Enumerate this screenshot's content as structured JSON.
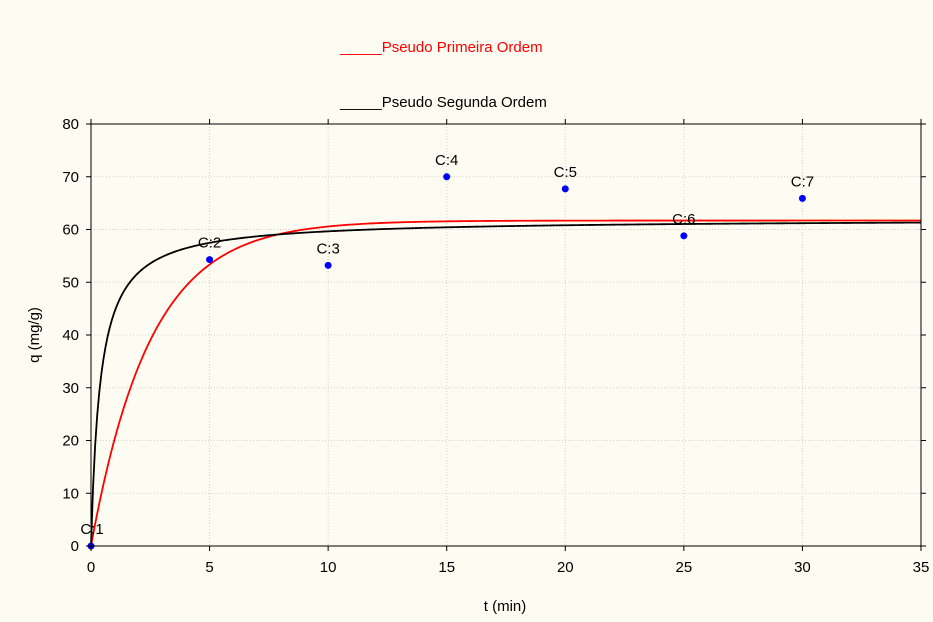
{
  "chart_data": {
    "type": "scatter",
    "title": "",
    "xlabel": "t (min)",
    "ylabel": "q (mg/g)",
    "xlim": [
      0,
      35
    ],
    "ylim": [
      0,
      80
    ],
    "xticks": [
      0,
      5,
      10,
      15,
      20,
      25,
      30,
      35
    ],
    "yticks": [
      0,
      10,
      20,
      30,
      40,
      50,
      60,
      70,
      80
    ],
    "grid": true,
    "legend_position": "top-center",
    "legend": [
      {
        "label": "_____Pseudo Primeira Ordem",
        "color": "#ff0000"
      },
      {
        "label": "_____Pseudo Segunda Ordem",
        "color": "#000000"
      }
    ],
    "points": {
      "color": "#0000ff",
      "items": [
        {
          "label": "C:1",
          "x": 0,
          "y": 0
        },
        {
          "label": "C:2",
          "x": 5,
          "y": 54.3
        },
        {
          "label": "C:3",
          "x": 10,
          "y": 53.2
        },
        {
          "label": "C:4",
          "x": 15,
          "y": 70
        },
        {
          "label": "C:5",
          "x": 20,
          "y": 67.7
        },
        {
          "label": "C:6",
          "x": 25,
          "y": 58.8
        },
        {
          "label": "C:7",
          "x": 30,
          "y": 65.9
        }
      ]
    },
    "curves": [
      {
        "model": "pseudo-first-order",
        "color": "#ff0000",
        "qe": 61.7,
        "k": 0.4
      },
      {
        "model": "pseudo-second-order",
        "color": "#000000",
        "qe": 62,
        "k": 0.041
      }
    ]
  }
}
